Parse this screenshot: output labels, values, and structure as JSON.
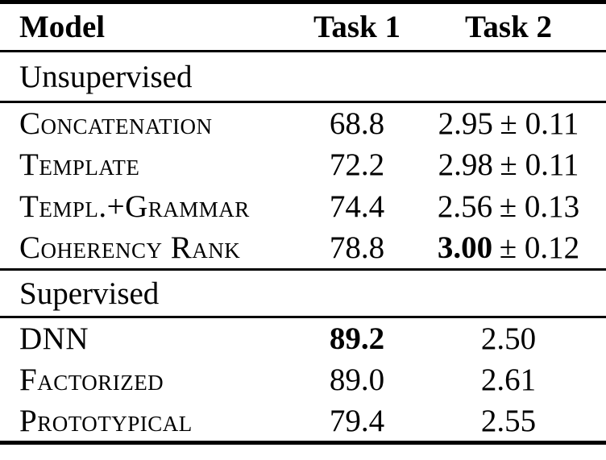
{
  "table": {
    "columns": {
      "model": "Model",
      "task1": "Task 1",
      "task2": "Task 2"
    },
    "sections": [
      {
        "label": "Unsupervised",
        "rows": [
          {
            "model": "Concatenation",
            "task1": "68.8",
            "task2": "2.95",
            "task2_pm": "± 0.11"
          },
          {
            "model": "Template",
            "task1": "72.2",
            "task2": "2.98",
            "task2_pm": "± 0.11"
          },
          {
            "model": "Templ.+Grammar",
            "task1": "74.4",
            "task2": "2.56",
            "task2_pm": "± 0.13"
          },
          {
            "model": "Coherency Rank",
            "task1": "78.8",
            "task2": "3.00",
            "task2_pm": "± 0.12"
          }
        ]
      },
      {
        "label": "Supervised",
        "rows": [
          {
            "model": "DNN",
            "task1": "89.2",
            "task2": "2.50"
          },
          {
            "model": "Factorized",
            "task1": "89.0",
            "task2": "2.61"
          },
          {
            "model": "Prototypical",
            "task1": "79.4",
            "task2": "2.55"
          }
        ]
      }
    ],
    "emphasis": {
      "best_task1": "89.2 (DNN, bold)",
      "best_task2": "3.00 (Coherency Rank, bold)"
    },
    "colors": {
      "text": "#000000",
      "background": "#ffffff",
      "rule": "#000000"
    }
  }
}
